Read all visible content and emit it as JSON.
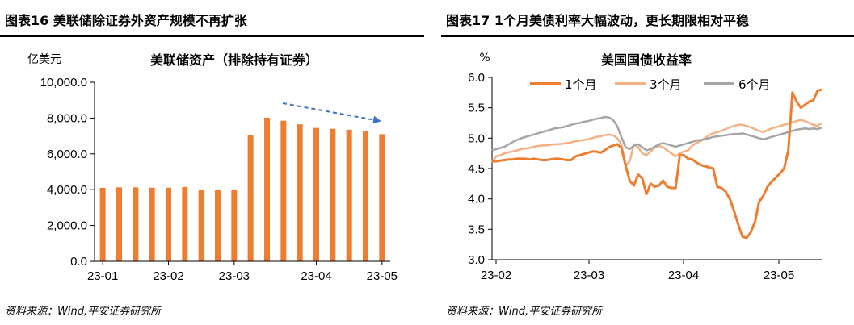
{
  "left": {
    "header": "图表16   美联储除证券外资产规模不再扩张",
    "source": "资料来源：Wind,平安证券研究所",
    "chart_data": {
      "type": "bar",
      "title": "美联储资产（排除持有证券）",
      "ylabel": "亿美元",
      "ylim": [
        0,
        10000
      ],
      "yticks": [
        "0.0",
        "2,000.0",
        "4,000.0",
        "6,000.0",
        "8,000.0",
        "10,000.0"
      ],
      "xticks": [
        "23-01",
        "23-02",
        "23-03",
        "23-04",
        "23-05"
      ],
      "values": [
        4100,
        4130,
        4130,
        4110,
        4110,
        4150,
        4000,
        3990,
        4000,
        7050,
        8020,
        7850,
        7650,
        7450,
        7400,
        7350,
        7250,
        7100
      ],
      "bar_color": "#ED7D31",
      "trend_arrow_color": "#4472C4"
    }
  },
  "right": {
    "header": "图表17   1个月美债利率大幅波动，更长期限相对平稳",
    "source": "资料来源：Wind,平安证券研究所",
    "chart_data": {
      "type": "line",
      "title": "美国国债收益率",
      "ylabel": "%",
      "ylim": [
        3.0,
        6.0
      ],
      "yticks": [
        "3.0",
        "3.5",
        "4.0",
        "4.5",
        "5.0",
        "5.5",
        "6.0"
      ],
      "xticks": [
        "23-02",
        "23-03",
        "23-04",
        "23-05"
      ],
      "series": [
        {
          "name": "1个月",
          "color": "#ED7D31",
          "values": [
            4.62,
            4.62,
            4.63,
            4.64,
            4.65,
            4.65,
            4.66,
            4.66,
            4.66,
            4.65,
            4.66,
            4.65,
            4.64,
            4.64,
            4.65,
            4.66,
            4.66,
            4.65,
            4.64,
            4.64,
            4.7,
            4.72,
            4.74,
            4.76,
            4.78,
            4.78,
            4.76,
            4.8,
            4.85,
            4.88,
            4.9,
            4.84,
            4.55,
            4.3,
            4.22,
            4.4,
            4.34,
            4.08,
            4.25,
            4.2,
            4.22,
            4.3,
            4.2,
            4.18,
            4.18,
            4.72,
            4.72,
            4.66,
            4.65,
            4.6,
            4.56,
            4.54,
            4.52,
            4.5,
            4.2,
            4.18,
            4.12,
            4.0,
            3.8,
            3.58,
            3.38,
            3.36,
            3.45,
            3.62,
            3.95,
            4.05,
            4.2,
            4.28,
            4.35,
            4.42,
            4.5,
            4.8,
            5.75,
            5.6,
            5.5,
            5.55,
            5.6,
            5.62,
            5.78,
            5.8
          ]
        },
        {
          "name": "3个月",
          "color": "#F4B183",
          "values": [
            4.6,
            4.7,
            4.72,
            4.75,
            4.77,
            4.78,
            4.8,
            4.82,
            4.83,
            4.84,
            4.86,
            4.87,
            4.88,
            4.88,
            4.89,
            4.9,
            4.9,
            4.91,
            4.92,
            4.93,
            4.95,
            4.96,
            4.97,
            4.98,
            5.0,
            5.02,
            5.03,
            5.05,
            5.06,
            5.05,
            5.0,
            4.9,
            4.55,
            4.62,
            4.9,
            4.85,
            4.75,
            4.72,
            4.78,
            4.85,
            4.87,
            4.85,
            4.8,
            4.75,
            4.7,
            4.75,
            4.78,
            4.8,
            4.88,
            4.92,
            4.95,
            5.0,
            5.05,
            5.08,
            5.1,
            5.12,
            5.15,
            5.18,
            5.2,
            5.22,
            5.22,
            5.2,
            5.18,
            5.15,
            5.12,
            5.1,
            5.13,
            5.16,
            5.18,
            5.2,
            5.22,
            5.24,
            5.26,
            5.28,
            5.3,
            5.28,
            5.25,
            5.22,
            5.2,
            5.25
          ]
        },
        {
          "name": "6个月",
          "color": "#A5A5A5",
          "values": [
            4.8,
            4.82,
            4.84,
            4.86,
            4.9,
            4.94,
            4.97,
            5.0,
            5.02,
            5.04,
            5.06,
            5.08,
            5.1,
            5.12,
            5.14,
            5.16,
            5.17,
            5.18,
            5.2,
            5.22,
            5.24,
            5.25,
            5.27,
            5.28,
            5.3,
            5.32,
            5.33,
            5.35,
            5.34,
            5.3,
            5.2,
            5.02,
            4.85,
            4.82,
            4.88,
            4.9,
            4.85,
            4.8,
            4.82,
            4.86,
            4.9,
            4.92,
            4.9,
            4.88,
            4.86,
            4.88,
            4.9,
            4.92,
            4.94,
            4.96,
            4.97,
            4.98,
            5.0,
            5.02,
            5.03,
            5.04,
            5.05,
            5.06,
            5.07,
            5.07,
            5.08,
            5.06,
            5.04,
            5.02,
            5.0,
            4.98,
            5.0,
            5.02,
            5.04,
            5.06,
            5.08,
            5.1,
            5.12,
            5.14,
            5.15,
            5.16,
            5.15,
            5.16,
            5.15,
            5.17
          ]
        }
      ]
    }
  }
}
